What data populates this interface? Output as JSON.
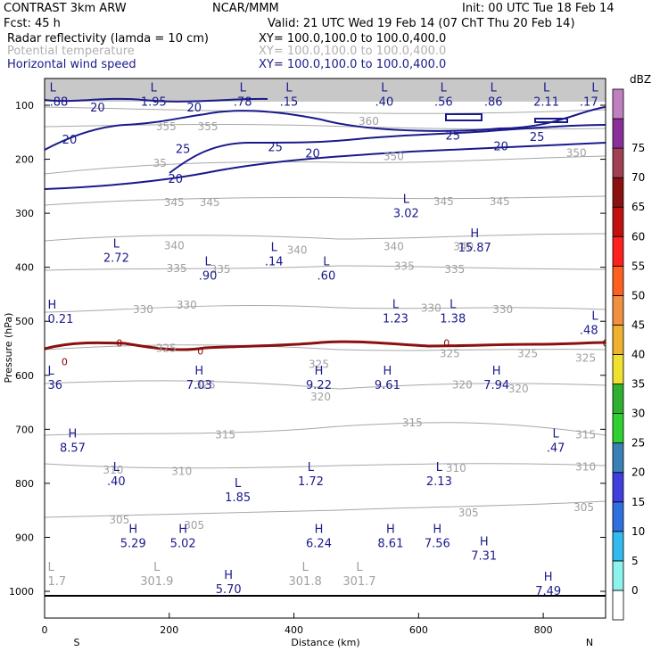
{
  "header": {
    "model": "CONTRAST  3km ARW",
    "org": "NCAR/MMM",
    "init": "Init: 00 UTC Tue 18 Feb 14",
    "fcst": "Fcst:   45 h",
    "valid": "Valid: 21 UTC Wed 19 Feb 14 (07 ChT Thu 20 Feb 14)",
    "fields": [
      {
        "name": "Radar reflectivity (lamda = 10 cm)",
        "xy": "XY= 100.0,100.0 to 100.0,400.0",
        "color": "#000000"
      },
      {
        "name": "Potential temperature",
        "xy": "XY= 100.0,100.0 to 100.0,400.0",
        "color": "#b0b0b0"
      },
      {
        "name": "Horizontal wind speed",
        "xy": "XY= 100.0,100.0 to 100.0,400.0",
        "color": "#1a1a8c"
      }
    ]
  },
  "chart_data": {
    "type": "cross-section contour",
    "xlabel": "Distance (km)",
    "ylabel": "Pressure (hPa)",
    "xlim": [
      0,
      900
    ],
    "ylim": [
      1050,
      65
    ],
    "x_ticks": [
      "0",
      "200",
      "400",
      "600",
      "800"
    ],
    "x_tick_values": [
      0,
      200,
      400,
      600,
      800
    ],
    "y_ticks": [
      "100",
      "200",
      "300",
      "400",
      "500",
      "600",
      "700",
      "800",
      "900",
      "1000"
    ],
    "y_tick_values": [
      100,
      200,
      300,
      400,
      500,
      600,
      700,
      800,
      900,
      1000
    ],
    "direction_left": "S",
    "direction_right": "N",
    "colorbar": {
      "unit": "dBZ",
      "levels": [
        "0",
        "5",
        "10",
        "15",
        "20",
        "25",
        "30",
        "35",
        "40",
        "45",
        "50",
        "55",
        "60",
        "65",
        "70",
        "75"
      ],
      "colors": [
        "#ffffff",
        "#8ef2ee",
        "#33bbf0",
        "#2f6fe0",
        "#3f3fe0",
        "#3a7fb5",
        "#2fd02f",
        "#30b030",
        "#f0e030",
        "#f0b030",
        "#f09040",
        "#ff6020",
        "#ff2020",
        "#c01010",
        "#8b1010",
        "#a04050",
        "#8a2e9a",
        "#c080c0"
      ]
    },
    "theta_labels": [
      {
        "text": "360",
        "x": 520,
        "p": 130
      },
      {
        "text": "355",
        "x": 195,
        "p": 140
      },
      {
        "text": "355",
        "x": 262,
        "p": 140
      },
      {
        "text": "350",
        "x": 560,
        "p": 195
      },
      {
        "text": "350",
        "x": 853,
        "p": 188
      },
      {
        "text": "35",
        "x": 185,
        "p": 207
      },
      {
        "text": "345",
        "x": 208,
        "p": 280
      },
      {
        "text": "345",
        "x": 265,
        "p": 280
      },
      {
        "text": "345",
        "x": 640,
        "p": 278
      },
      {
        "text": "345",
        "x": 730,
        "p": 278
      },
      {
        "text": "340",
        "x": 208,
        "p": 360
      },
      {
        "text": "340",
        "x": 405,
        "p": 368
      },
      {
        "text": "340",
        "x": 560,
        "p": 362
      },
      {
        "text": "340",
        "x": 672,
        "p": 362
      },
      {
        "text": "335",
        "x": 212,
        "p": 402
      },
      {
        "text": "335",
        "x": 282,
        "p": 404
      },
      {
        "text": "335",
        "x": 577,
        "p": 398
      },
      {
        "text": "335",
        "x": 658,
        "p": 404
      },
      {
        "text": "330",
        "x": 158,
        "p": 478
      },
      {
        "text": "330",
        "x": 228,
        "p": 470
      },
      {
        "text": "330",
        "x": 620,
        "p": 476
      },
      {
        "text": "330",
        "x": 735,
        "p": 478
      },
      {
        "text": "325",
        "x": 195,
        "p": 550
      },
      {
        "text": "325",
        "x": 440,
        "p": 580
      },
      {
        "text": "325",
        "x": 650,
        "p": 560
      },
      {
        "text": "325",
        "x": 775,
        "p": 560
      },
      {
        "text": "325",
        "x": 868,
        "p": 568
      },
      {
        "text": "325",
        "x": 258,
        "p": 618
      },
      {
        "text": "320",
        "x": 443,
        "p": 640
      },
      {
        "text": "320",
        "x": 670,
        "p": 618
      },
      {
        "text": "320",
        "x": 760,
        "p": 625
      },
      {
        "text": "315",
        "x": 290,
        "p": 710
      },
      {
        "text": "315",
        "x": 590,
        "p": 688
      },
      {
        "text": "315",
        "x": 868,
        "p": 710
      },
      {
        "text": "310",
        "x": 110,
        "p": 775
      },
      {
        "text": "310",
        "x": 220,
        "p": 778
      },
      {
        "text": "310",
        "x": 660,
        "p": 772
      },
      {
        "text": "310",
        "x": 868,
        "p": 770
      },
      {
        "text": "305",
        "x": 120,
        "p": 868
      },
      {
        "text": "305",
        "x": 240,
        "p": 878
      },
      {
        "text": "305",
        "x": 680,
        "p": 855
      },
      {
        "text": "305",
        "x": 865,
        "p": 845
      }
    ],
    "extrema": [
      {
        "kind": "L",
        "value": ".88",
        "x": 8,
        "p": 88,
        "color": "#1a1a8c"
      },
      {
        "kind": "L",
        "value": "1.95",
        "x": 175,
        "p": 88,
        "color": "#1a1a8c"
      },
      {
        "kind": "L",
        "value": ".78",
        "x": 318,
        "p": 88,
        "color": "#1a1a8c"
      },
      {
        "kind": "L",
        "value": ".15",
        "x": 392,
        "p": 88,
        "color": "#1a1a8c"
      },
      {
        "kind": "L",
        "value": ".40",
        "x": 545,
        "p": 88,
        "color": "#1a1a8c"
      },
      {
        "kind": "L",
        "value": ".56",
        "x": 640,
        "p": 88,
        "color": "#1a1a8c"
      },
      {
        "kind": "L",
        "value": ".86",
        "x": 720,
        "p": 88,
        "color": "#1a1a8c"
      },
      {
        "kind": "L",
        "value": "2.11",
        "x": 805,
        "p": 88,
        "color": "#1a1a8c"
      },
      {
        "kind": "L",
        "value": ".17",
        "x": 888,
        "p": 88,
        "color": "#1a1a8c"
      },
      {
        "kind": "L",
        "value": "3.02",
        "x": 580,
        "p": 294,
        "color": "#1a1a8c"
      },
      {
        "kind": "H",
        "value": "15.87",
        "x": 690,
        "p": 358,
        "color": "#1a1a8c"
      },
      {
        "kind": "L",
        "value": "2.72",
        "x": 115,
        "p": 377,
        "color": "#1a1a8c"
      },
      {
        "kind": "L",
        "value": ".14",
        "x": 368,
        "p": 383,
        "color": "#1a1a8c"
      },
      {
        "kind": "L",
        "value": ".90",
        "x": 262,
        "p": 410,
        "color": "#1a1a8c"
      },
      {
        "kind": "L",
        "value": ".60",
        "x": 452,
        "p": 410,
        "color": "#1a1a8c"
      },
      {
        "kind": "H",
        "value": "0.21",
        "x": 5,
        "p": 490,
        "color": "#1a1a8c"
      },
      {
        "kind": "L",
        "value": "1.23",
        "x": 563,
        "p": 489,
        "color": "#1a1a8c"
      },
      {
        "kind": "L",
        "value": "1.38",
        "x": 655,
        "p": 489,
        "color": "#1a1a8c"
      },
      {
        "kind": "L",
        "value": ".48",
        "x": 888,
        "p": 510,
        "color": "#1a1a8c"
      },
      {
        "kind": "L",
        "value": "36",
        "x": 5,
        "p": 612,
        "color": "#1a1a8c"
      },
      {
        "kind": "H",
        "value": "7.03",
        "x": 248,
        "p": 612,
        "color": "#1a1a8c"
      },
      {
        "kind": "H",
        "value": "9.22",
        "x": 440,
        "p": 612,
        "color": "#1a1a8c"
      },
      {
        "kind": "H",
        "value": "9.61",
        "x": 550,
        "p": 612,
        "color": "#1a1a8c"
      },
      {
        "kind": "H",
        "value": "7.94",
        "x": 725,
        "p": 612,
        "color": "#1a1a8c"
      },
      {
        "kind": "H",
        "value": "8.57",
        "x": 45,
        "p": 728,
        "color": "#1a1a8c"
      },
      {
        "kind": "L",
        "value": ".47",
        "x": 820,
        "p": 728,
        "color": "#1a1a8c"
      },
      {
        "kind": "L",
        "value": ".40",
        "x": 115,
        "p": 790,
        "color": "#1a1a8c"
      },
      {
        "kind": "L",
        "value": "1.72",
        "x": 427,
        "p": 790,
        "color": "#1a1a8c"
      },
      {
        "kind": "L",
        "value": "2.13",
        "x": 633,
        "p": 790,
        "color": "#1a1a8c"
      },
      {
        "kind": "L",
        "value": "1.85",
        "x": 310,
        "p": 820,
        "color": "#1a1a8c"
      },
      {
        "kind": "H",
        "value": "5.29",
        "x": 142,
        "p": 905,
        "color": "#1a1a8c"
      },
      {
        "kind": "H",
        "value": "5.02",
        "x": 222,
        "p": 905,
        "color": "#1a1a8c"
      },
      {
        "kind": "H",
        "value": "6.24",
        "x": 440,
        "p": 905,
        "color": "#1a1a8c"
      },
      {
        "kind": "H",
        "value": "8.61",
        "x": 555,
        "p": 905,
        "color": "#1a1a8c"
      },
      {
        "kind": "H",
        "value": "7.56",
        "x": 630,
        "p": 905,
        "color": "#1a1a8c"
      },
      {
        "kind": "H",
        "value": "7.31",
        "x": 705,
        "p": 928,
        "color": "#1a1a8c"
      },
      {
        "kind": "L",
        "value": "1.7",
        "x": 5,
        "p": 975,
        "color": "#a0a0a0"
      },
      {
        "kind": "L",
        "value": "301.9",
        "x": 180,
        "p": 975,
        "color": "#a0a0a0"
      },
      {
        "kind": "L",
        "value": "301.8",
        "x": 418,
        "p": 975,
        "color": "#a0a0a0"
      },
      {
        "kind": "L",
        "value": "301.7",
        "x": 505,
        "p": 975,
        "color": "#a0a0a0"
      },
      {
        "kind": "H",
        "value": "5.70",
        "x": 295,
        "p": 990,
        "color": "#1a1a8c"
      },
      {
        "kind": "H",
        "value": "7.49",
        "x": 808,
        "p": 993,
        "color": "#1a1a8c"
      }
    ],
    "wind_labels": [
      {
        "text": "20",
        "x": 85,
        "p": 103
      },
      {
        "text": "20",
        "x": 240,
        "p": 103
      },
      {
        "text": "20",
        "x": 40,
        "p": 163
      },
      {
        "text": "25",
        "x": 222,
        "p": 180
      },
      {
        "text": "25",
        "x": 370,
        "p": 177
      },
      {
        "text": "20",
        "x": 430,
        "p": 188
      },
      {
        "text": "25",
        "x": 655,
        "p": 155
      },
      {
        "text": "20",
        "x": 732,
        "p": 175
      },
      {
        "text": "25",
        "x": 790,
        "p": 158
      },
      {
        "text": "20",
        "x": 210,
        "p": 235
      }
    ],
    "reflectivity_labels": [
      {
        "text": "0",
        "x": 32,
        "p": 575
      },
      {
        "text": "0",
        "x": 120,
        "p": 540
      },
      {
        "text": "0",
        "x": 250,
        "p": 555
      },
      {
        "text": "0",
        "x": 645,
        "p": 540
      },
      {
        "text": "0",
        "x": 900,
        "p": 540
      }
    ]
  }
}
